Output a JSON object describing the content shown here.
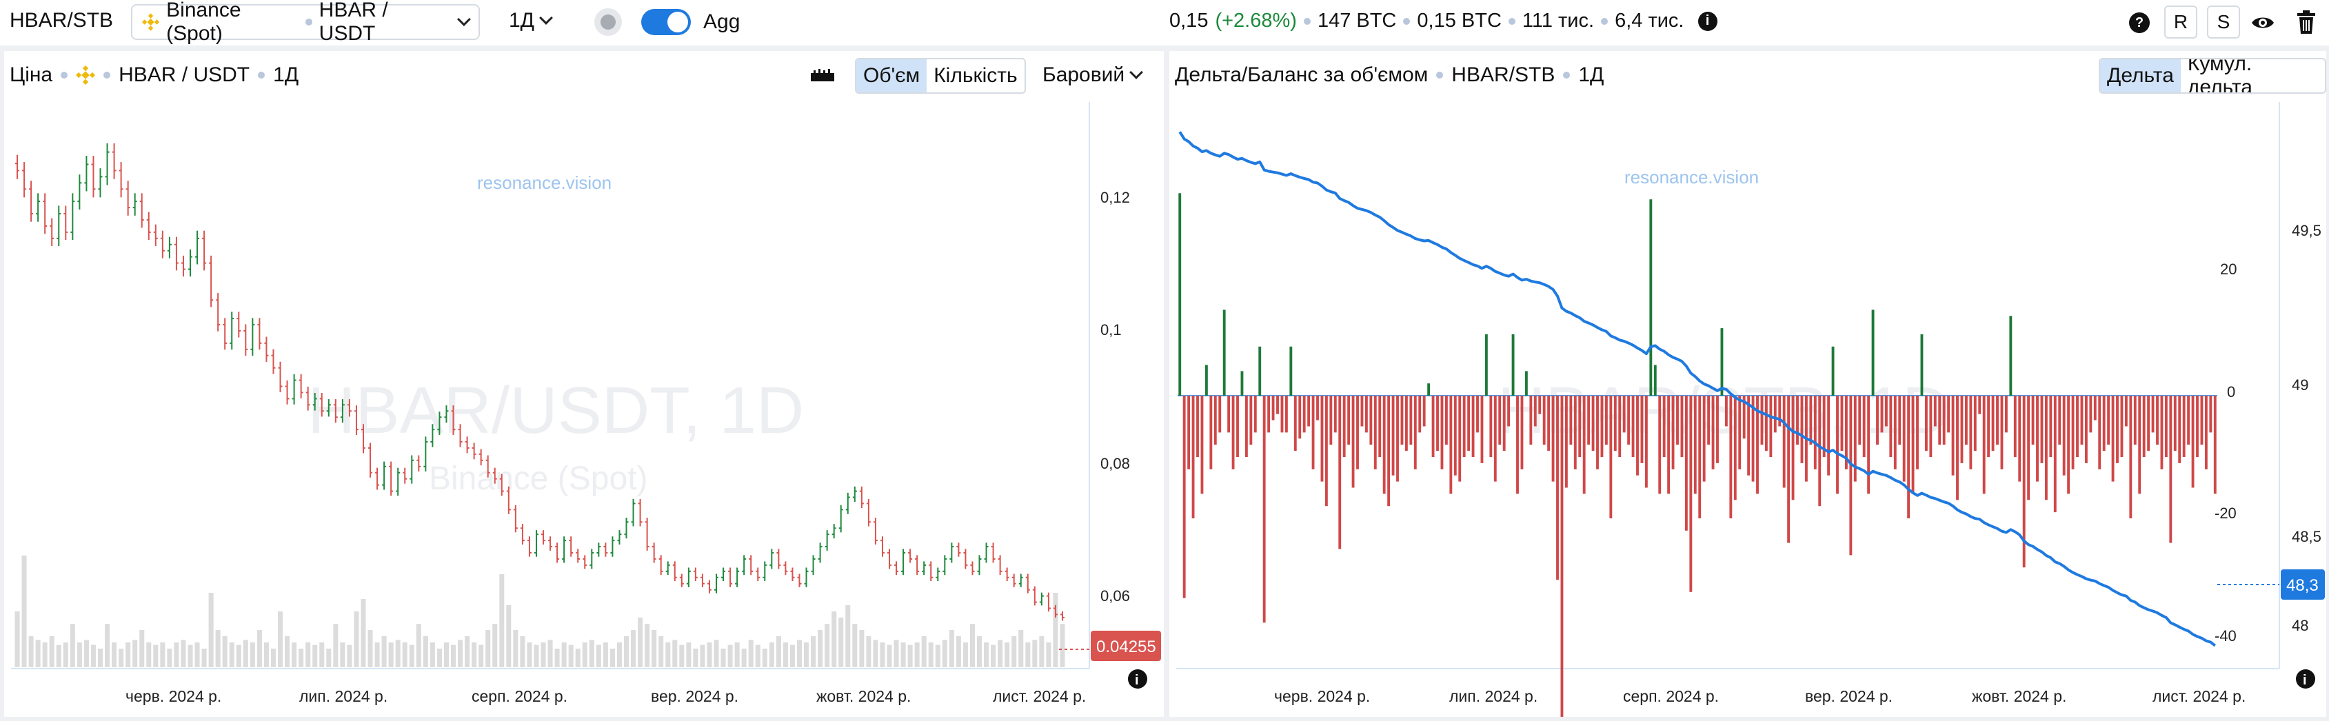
{
  "topbar": {
    "symbol": "HBAR/STB",
    "exchange": "Binance (Spot)",
    "pair": "HBAR / USDT",
    "timeframe": "1Д",
    "agg_label": "Agg",
    "price": "0,15",
    "change": "(+2.68%)",
    "vol_btc": "147 BTC",
    "vol2": "0,15 BTC",
    "trades": "111 тис.",
    "other": "6,4 тис.",
    "btn_r": "R",
    "btn_s": "S"
  },
  "left_panel": {
    "title": "Ціна",
    "pair": "HBAR / USDT",
    "timeframe": "1Д",
    "seg_volume": "Об'єм",
    "seg_count": "Кількість",
    "chart_type": "Баровий",
    "watermark_main": "HBAR/USDT, 1D",
    "watermark_sub": "Binance (Spot)",
    "brand": "resonance.vision",
    "last_price": "0.04255",
    "y_ticks": [
      "0,12",
      "0,1",
      "0,08",
      "0,06"
    ],
    "x_ticks": [
      "черв. 2024 р.",
      "лип. 2024 р.",
      "серп. 2024 р.",
      "вер. 2024 р.",
      "жовт. 2024 р.",
      "лист. 2024 р."
    ]
  },
  "right_panel": {
    "title": "Дельта/Баланс за об'ємом",
    "pair": "HBAR/STB",
    "timeframe": "1Д",
    "seg_delta": "Дельта",
    "seg_cum": "Кумул. дельта",
    "watermark_main": "HBAR/STB, 1D",
    "brand": "resonance.vision",
    "last_value": "48,3",
    "y_ticks_left": [
      "20",
      "0",
      "-20",
      "-40"
    ],
    "y_ticks_right": [
      "49,5",
      "49",
      "48,5",
      "48"
    ],
    "x_ticks": [
      "черв. 2024 р.",
      "лип. 2024 р.",
      "серп. 2024 р.",
      "вер. 2024 р.",
      "жовт. 2024 р.",
      "лист. 2024 р."
    ]
  },
  "chart_data": [
    {
      "type": "candlestick",
      "title": "HBAR/USDT, 1D",
      "ylim": [
        0.035,
        0.125
      ],
      "close_series": [
        0.115,
        0.112,
        0.108,
        0.11,
        0.106,
        0.104,
        0.108,
        0.105,
        0.11,
        0.113,
        0.116,
        0.112,
        0.114,
        0.118,
        0.115,
        0.112,
        0.109,
        0.11,
        0.107,
        0.105,
        0.104,
        0.102,
        0.103,
        0.1,
        0.099,
        0.101,
        0.104,
        0.1,
        0.094,
        0.09,
        0.087,
        0.091,
        0.089,
        0.086,
        0.09,
        0.087,
        0.085,
        0.083,
        0.08,
        0.078,
        0.081,
        0.079,
        0.077,
        0.078,
        0.076,
        0.077,
        0.075,
        0.077,
        0.076,
        0.073,
        0.07,
        0.066,
        0.064,
        0.067,
        0.063,
        0.066,
        0.065,
        0.068,
        0.067,
        0.071,
        0.073,
        0.075,
        0.076,
        0.073,
        0.071,
        0.07,
        0.069,
        0.068,
        0.066,
        0.065,
        0.063,
        0.06,
        0.057,
        0.055,
        0.053,
        0.056,
        0.055,
        0.054,
        0.052,
        0.055,
        0.053,
        0.052,
        0.051,
        0.053,
        0.054,
        0.053,
        0.055,
        0.056,
        0.058,
        0.061,
        0.058,
        0.054,
        0.052,
        0.05,
        0.051,
        0.049,
        0.048,
        0.05,
        0.049,
        0.048,
        0.047,
        0.049,
        0.05,
        0.048,
        0.05,
        0.052,
        0.05,
        0.049,
        0.051,
        0.053,
        0.051,
        0.05,
        0.049,
        0.048,
        0.05,
        0.052,
        0.054,
        0.056,
        0.057,
        0.06,
        0.062,
        0.063,
        0.061,
        0.058,
        0.055,
        0.053,
        0.051,
        0.05,
        0.053,
        0.052,
        0.05,
        0.051,
        0.049,
        0.05,
        0.052,
        0.054,
        0.053,
        0.051,
        0.05,
        0.052,
        0.054,
        0.052,
        0.05,
        0.049,
        0.048,
        0.049,
        0.047,
        0.045,
        0.046,
        0.044,
        0.043,
        0.0425
      ],
      "volume_relative": [
        0.45,
        0.9,
        0.25,
        0.22,
        0.2,
        0.25,
        0.18,
        0.2,
        0.35,
        0.2,
        0.22,
        0.18,
        0.15,
        0.35,
        0.2,
        0.15,
        0.2,
        0.22,
        0.3,
        0.2,
        0.18,
        0.2,
        0.15,
        0.2,
        0.22,
        0.18,
        0.2,
        0.15,
        0.6,
        0.3,
        0.25,
        0.2,
        0.18,
        0.22,
        0.2,
        0.3,
        0.2,
        0.15,
        0.45,
        0.25,
        0.2,
        0.15,
        0.2,
        0.18,
        0.2,
        0.15,
        0.35,
        0.2,
        0.18,
        0.45,
        0.55,
        0.3,
        0.2,
        0.25,
        0.2,
        0.22,
        0.2,
        0.18,
        0.35,
        0.25,
        0.2,
        0.15,
        0.2,
        0.18,
        0.22,
        0.25,
        0.2,
        0.18,
        0.3,
        0.35,
        0.75,
        0.5,
        0.3,
        0.25,
        0.2,
        0.18,
        0.2,
        0.22,
        0.15,
        0.2,
        0.18,
        0.15,
        0.2,
        0.22,
        0.18,
        0.2,
        0.15,
        0.2,
        0.25,
        0.3,
        0.4,
        0.35,
        0.3,
        0.25,
        0.2,
        0.22,
        0.18,
        0.2,
        0.15,
        0.18,
        0.2,
        0.22,
        0.15,
        0.18,
        0.2,
        0.15,
        0.22,
        0.18,
        0.15,
        0.2,
        0.25,
        0.2,
        0.18,
        0.22,
        0.2,
        0.25,
        0.3,
        0.35,
        0.45,
        0.4,
        0.5,
        0.35,
        0.3,
        0.25,
        0.22,
        0.2,
        0.18,
        0.22,
        0.2,
        0.18,
        0.2,
        0.25,
        0.2,
        0.18,
        0.22,
        0.3,
        0.25,
        0.2,
        0.35,
        0.25,
        0.2,
        0.18,
        0.22,
        0.2,
        0.25,
        0.3,
        0.2,
        0.22,
        0.25,
        0.2,
        0.6,
        0.35
      ]
    },
    {
      "type": "bar+line",
      "title": "Дельта/Баланс за об'ємом",
      "delta_ylim": [
        -55,
        35
      ],
      "cum_ylim": [
        47.85,
        49.8
      ],
      "delta_series": [
        33,
        -33,
        -12,
        -20,
        -10,
        -16,
        5,
        -12,
        -8,
        -6,
        14,
        -6,
        -12,
        -10,
        4,
        -10,
        -8,
        -6,
        8,
        -37,
        -6,
        -4,
        -3,
        -6,
        -6,
        8,
        -9,
        -7,
        -6,
        -5,
        -12,
        -4,
        -14,
        -18,
        -8,
        -6,
        -25,
        -10,
        -8,
        -15,
        -12,
        -5,
        -6,
        -8,
        -12,
        -10,
        -16,
        -18,
        -13,
        -14,
        -8,
        -9,
        -8,
        -12,
        -6,
        -5,
        2,
        -10,
        -9,
        -12,
        -8,
        -16,
        -13,
        -14,
        -10,
        -9,
        -10,
        -6,
        -11,
        10,
        -10,
        -14,
        -8,
        -9,
        -5,
        10,
        -16,
        -12,
        4,
        -8,
        -5,
        -3,
        -8,
        -9,
        -14,
        -30,
        -55,
        -15,
        -8,
        -12,
        -10,
        -16,
        -8,
        -9,
        -12,
        -10,
        -8,
        -20,
        -9,
        -10,
        -6,
        -8,
        -10,
        -13,
        -11,
        -15,
        32,
        5,
        -16,
        -10,
        -16,
        -12,
        -8,
        -10,
        -22,
        -32,
        -16,
        -20,
        -14,
        -8,
        -12,
        -11,
        11,
        -5,
        -20,
        -17,
        -12,
        -7,
        -13,
        -14,
        -16,
        -8,
        -9,
        -10,
        -6,
        -5,
        -15,
        -24,
        -17,
        -8,
        -11,
        -14,
        -8,
        -12,
        -18,
        -10,
        -13,
        8,
        -16,
        -9,
        -12,
        -26,
        -14,
        -8,
        -10,
        -16,
        14,
        -8,
        -6,
        -5,
        -10,
        -12,
        -8,
        -14,
        -20,
        -16,
        -12,
        10,
        -9,
        -10,
        -5,
        -8,
        -8,
        -6,
        -13,
        -17,
        -11,
        -8,
        -12,
        -9,
        -3,
        -16,
        -10,
        -9,
        -8,
        -12,
        -6,
        13,
        -10,
        -14,
        -28,
        -17,
        -8,
        -14,
        -11,
        -17,
        -10,
        -19,
        -8,
        -13,
        -16,
        -12,
        -10,
        -8,
        -11,
        -6,
        -4,
        -12,
        -9,
        -8,
        -14,
        -11,
        -10,
        -5,
        -20,
        -8,
        -16,
        -10,
        -9,
        -6,
        -8,
        -12,
        -10,
        -24,
        -9,
        -11,
        -10,
        -8,
        -15,
        -10,
        -8,
        -12,
        -6,
        -16
      ],
      "cum_end": 48.3
    }
  ],
  "icons": {
    "ruler": "ruler-icon",
    "eye": "eye-icon",
    "trash": "trash-icon",
    "help": "help-icon",
    "info": "info-icon"
  }
}
